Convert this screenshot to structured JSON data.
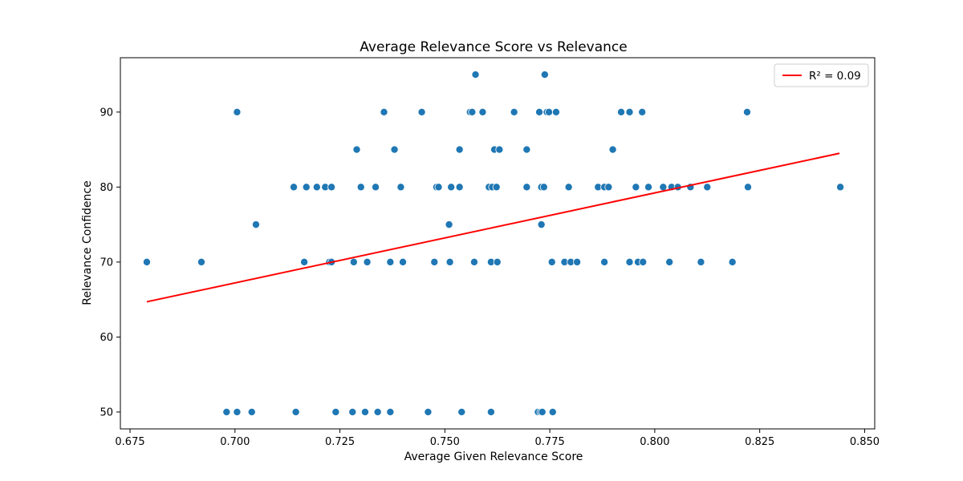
{
  "chart_data": {
    "type": "scatter",
    "title": "Average Relevance Score vs Relevance",
    "xlabel": "Average Given Relevance Score",
    "ylabel": "Relevance Confidence",
    "xlim": [
      0.6727,
      0.8524
    ],
    "ylim": [
      47.75,
      97.25
    ],
    "x_ticks": [
      0.675,
      0.7,
      0.725,
      0.75,
      0.775,
      0.8,
      0.825,
      0.85
    ],
    "x_tick_labels": [
      "0.675",
      "0.700",
      "0.725",
      "0.750",
      "0.775",
      "0.800",
      "0.825",
      "0.850"
    ],
    "y_ticks": [
      50,
      60,
      70,
      80,
      90
    ],
    "y_tick_labels": [
      "50",
      "60",
      "70",
      "80",
      "90"
    ],
    "grid": false,
    "legend_position": "top-right",
    "colors": {
      "points": "#1f77b4",
      "trend": "#ff0000",
      "axes": "#000000"
    },
    "legend": [
      {
        "label": "R² = 0.09",
        "kind": "line",
        "color": "#ff0000"
      }
    ],
    "trend_line": {
      "x": [
        0.679,
        0.844
      ],
      "y": [
        64.7,
        84.5
      ]
    },
    "points": [
      {
        "x": 0.679,
        "y": 70
      },
      {
        "x": 0.692,
        "y": 70
      },
      {
        "x": 0.698,
        "y": 50
      },
      {
        "x": 0.7005,
        "y": 90
      },
      {
        "x": 0.7005,
        "y": 50
      },
      {
        "x": 0.704,
        "y": 50
      },
      {
        "x": 0.705,
        "y": 75
      },
      {
        "x": 0.714,
        "y": 80
      },
      {
        "x": 0.7145,
        "y": 50
      },
      {
        "x": 0.7165,
        "y": 70
      },
      {
        "x": 0.717,
        "y": 80
      },
      {
        "x": 0.7195,
        "y": 80
      },
      {
        "x": 0.7215,
        "y": 80
      },
      {
        "x": 0.7225,
        "y": 70
      },
      {
        "x": 0.723,
        "y": 70
      },
      {
        "x": 0.723,
        "y": 80
      },
      {
        "x": 0.724,
        "y": 50
      },
      {
        "x": 0.728,
        "y": 50
      },
      {
        "x": 0.7283,
        "y": 70
      },
      {
        "x": 0.729,
        "y": 85
      },
      {
        "x": 0.73,
        "y": 80
      },
      {
        "x": 0.731,
        "y": 50
      },
      {
        "x": 0.7315,
        "y": 70
      },
      {
        "x": 0.7335,
        "y": 80
      },
      {
        "x": 0.734,
        "y": 50
      },
      {
        "x": 0.7355,
        "y": 90
      },
      {
        "x": 0.737,
        "y": 70
      },
      {
        "x": 0.737,
        "y": 50
      },
      {
        "x": 0.738,
        "y": 85
      },
      {
        "x": 0.7395,
        "y": 80
      },
      {
        "x": 0.74,
        "y": 70
      },
      {
        "x": 0.7445,
        "y": 90
      },
      {
        "x": 0.746,
        "y": 50
      },
      {
        "x": 0.7475,
        "y": 70
      },
      {
        "x": 0.748,
        "y": 80
      },
      {
        "x": 0.7485,
        "y": 80
      },
      {
        "x": 0.751,
        "y": 75
      },
      {
        "x": 0.7512,
        "y": 70
      },
      {
        "x": 0.7515,
        "y": 80
      },
      {
        "x": 0.7535,
        "y": 80
      },
      {
        "x": 0.7535,
        "y": 85
      },
      {
        "x": 0.754,
        "y": 50
      },
      {
        "x": 0.756,
        "y": 90
      },
      {
        "x": 0.7565,
        "y": 90
      },
      {
        "x": 0.757,
        "y": 70
      },
      {
        "x": 0.7573,
        "y": 95
      },
      {
        "x": 0.759,
        "y": 90
      },
      {
        "x": 0.7605,
        "y": 80
      },
      {
        "x": 0.761,
        "y": 70
      },
      {
        "x": 0.761,
        "y": 50
      },
      {
        "x": 0.7613,
        "y": 80
      },
      {
        "x": 0.7618,
        "y": 85
      },
      {
        "x": 0.7623,
        "y": 80
      },
      {
        "x": 0.7625,
        "y": 70
      },
      {
        "x": 0.763,
        "y": 85
      },
      {
        "x": 0.7665,
        "y": 90
      },
      {
        "x": 0.7695,
        "y": 80
      },
      {
        "x": 0.7695,
        "y": 85
      },
      {
        "x": 0.7722,
        "y": 50
      },
      {
        "x": 0.7725,
        "y": 90
      },
      {
        "x": 0.7728,
        "y": 50
      },
      {
        "x": 0.773,
        "y": 80
      },
      {
        "x": 0.773,
        "y": 75
      },
      {
        "x": 0.7732,
        "y": 50
      },
      {
        "x": 0.7736,
        "y": 80
      },
      {
        "x": 0.7738,
        "y": 95
      },
      {
        "x": 0.7743,
        "y": 90
      },
      {
        "x": 0.7748,
        "y": 90
      },
      {
        "x": 0.7755,
        "y": 70
      },
      {
        "x": 0.7757,
        "y": 50
      },
      {
        "x": 0.7765,
        "y": 90
      },
      {
        "x": 0.7785,
        "y": 70
      },
      {
        "x": 0.7795,
        "y": 80
      },
      {
        "x": 0.78,
        "y": 70
      },
      {
        "x": 0.7815,
        "y": 70
      },
      {
        "x": 0.7865,
        "y": 80
      },
      {
        "x": 0.788,
        "y": 70
      },
      {
        "x": 0.788,
        "y": 80
      },
      {
        "x": 0.789,
        "y": 80
      },
      {
        "x": 0.79,
        "y": 85
      },
      {
        "x": 0.792,
        "y": 90
      },
      {
        "x": 0.794,
        "y": 90
      },
      {
        "x": 0.794,
        "y": 70
      },
      {
        "x": 0.7955,
        "y": 80
      },
      {
        "x": 0.796,
        "y": 70
      },
      {
        "x": 0.797,
        "y": 90
      },
      {
        "x": 0.7972,
        "y": 70
      },
      {
        "x": 0.7985,
        "y": 80
      },
      {
        "x": 0.802,
        "y": 80
      },
      {
        "x": 0.8035,
        "y": 70
      },
      {
        "x": 0.804,
        "y": 80
      },
      {
        "x": 0.8055,
        "y": 80
      },
      {
        "x": 0.8085,
        "y": 80
      },
      {
        "x": 0.811,
        "y": 70
      },
      {
        "x": 0.8125,
        "y": 80
      },
      {
        "x": 0.8185,
        "y": 70
      },
      {
        "x": 0.822,
        "y": 90
      },
      {
        "x": 0.8222,
        "y": 80
      },
      {
        "x": 0.8442,
        "y": 80
      }
    ]
  }
}
